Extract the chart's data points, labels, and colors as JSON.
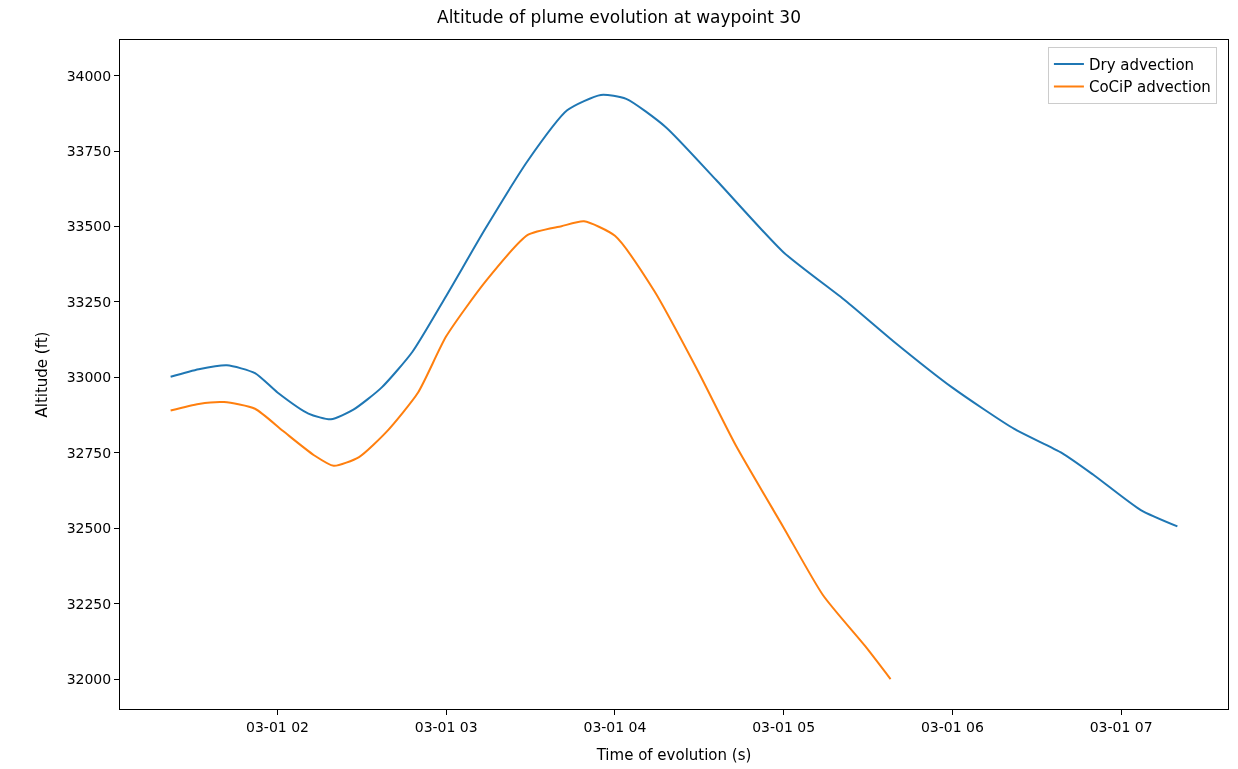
{
  "chart_data": {
    "type": "line",
    "title": "Altitude of plume evolution at waypoint 30",
    "xlabel": "Time of evolution (s)",
    "ylabel": "Altitude (ft)",
    "xlim": [
      "--03-01T01:04",
      "--03-01T07:38"
    ],
    "ylim": [
      31901,
      34118
    ],
    "xticks": [
      {
        "value": "--03-01T02:00",
        "label": "03-01 02"
      },
      {
        "value": "--03-01T03:00",
        "label": "03-01 03"
      },
      {
        "value": "--03-01T04:00",
        "label": "03-01 04"
      },
      {
        "value": "--03-01T05:00",
        "label": "03-01 05"
      },
      {
        "value": "--03-01T06:00",
        "label": "03-01 06"
      },
      {
        "value": "--03-01T07:00",
        "label": "03-01 07"
      }
    ],
    "yticks": [
      32000,
      32250,
      32500,
      32750,
      33000,
      33250,
      33500,
      33750,
      34000
    ],
    "legend": "top right",
    "line_style": "solid",
    "series": [
      {
        "name": "Dry advection",
        "color": "#1f77b4",
        "x": [
          "--03-01T01:22",
          "--03-01T01:32",
          "--03-01T01:42",
          "--03-01T01:52",
          "--03-01T02:00",
          "--03-01T02:11",
          "--03-01T02:19",
          "--03-01T02:27",
          "--03-01T02:37",
          "--03-01T02:48",
          "--03-01T03:00",
          "--03-01T03:14",
          "--03-01T03:29",
          "--03-01T03:43",
          "--03-01T03:55",
          "--03-01T04:04",
          "--03-01T04:18",
          "--03-01T04:36",
          "--03-01T05:00",
          "--03-01T05:22",
          "--03-01T05:39",
          "--03-01T06:00",
          "--03-01T06:22",
          "--03-01T06:39",
          "--03-01T06:50",
          "--03-01T07:07",
          "--03-01T07:20"
        ],
        "values": [
          33002,
          33027,
          33040,
          33014,
          32950,
          32880,
          32861,
          32893,
          32966,
          33085,
          33270,
          33494,
          33718,
          33885,
          33936,
          33923,
          33830,
          33654,
          33414,
          33254,
          33120,
          32966,
          32829,
          32749,
          32678,
          32560,
          32506
        ]
      },
      {
        "name": "CoCiP advection",
        "color": "#ff7f0e",
        "x": [
          "--03-01T01:22",
          "--03-01T01:32",
          "--03-01T01:41",
          "--03-01T01:52",
          "--03-01T02:02",
          "--03-01T02:13",
          "--03-01T02:20",
          "--03-01T02:29",
          "--03-01T02:39",
          "--03-01T02:50",
          "--03-01T03:00",
          "--03-01T03:14",
          "--03-01T03:29",
          "--03-01T03:41",
          "--03-01T03:49",
          "--03-01T04:00",
          "--03-01T04:14",
          "--03-01T04:29",
          "--03-01T04:43",
          "--03-01T05:00",
          "--03-01T05:14",
          "--03-01T05:29",
          "--03-01T05:38"
        ],
        "values": [
          32890,
          32912,
          32918,
          32896,
          32822,
          32742,
          32707,
          32736,
          32822,
          32950,
          33136,
          33318,
          33472,
          33501,
          33517,
          33469,
          33286,
          33030,
          32774,
          32502,
          32278,
          32109,
          32000
        ]
      }
    ]
  }
}
